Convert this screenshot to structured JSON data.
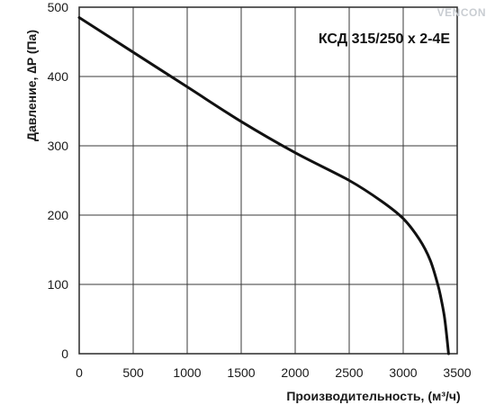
{
  "brand": {
    "logo_text": "VENCON",
    "color": "#c9cdd2"
  },
  "chart_data": {
    "type": "line",
    "title": "КСД 315/250 x 2-4E",
    "xlabel": "Производительность, (м³/ч)",
    "ylabel": "Давление, ∆P (Па)",
    "xlim": [
      0,
      3500
    ],
    "ylim": [
      0,
      500
    ],
    "x_ticks": [
      0,
      500,
      1000,
      1500,
      2000,
      2500,
      3000,
      3500
    ],
    "y_ticks": [
      0,
      100,
      200,
      300,
      400,
      500
    ],
    "grid": true,
    "legend": "none",
    "series": [
      {
        "color": "#111111",
        "x": [
          0,
          500,
          1000,
          1500,
          2000,
          2500,
          2800,
          3000,
          3150,
          3250,
          3320,
          3350,
          3380,
          3400,
          3420
        ],
        "y": [
          485,
          435,
          385,
          335,
          290,
          250,
          220,
          195,
          165,
          135,
          100,
          80,
          55,
          30,
          0
        ]
      }
    ]
  }
}
